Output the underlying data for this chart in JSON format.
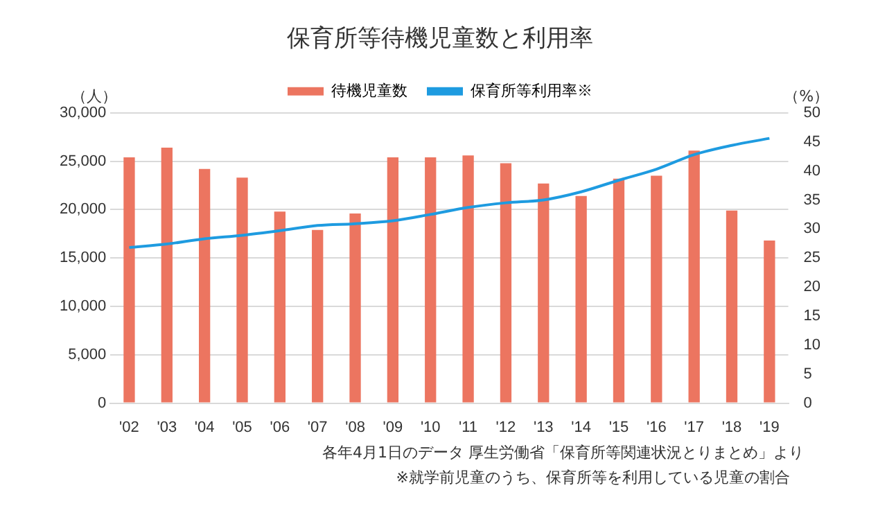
{
  "chart_data": {
    "type": "bar",
    "title": "保育所等待機児童数と利用率",
    "ylabel": "（人）",
    "y2label": "（%）",
    "categories": [
      "'02",
      "'03",
      "'04",
      "'05",
      "'06",
      "'07",
      "'08",
      "'09",
      "'10",
      "'11",
      "'12",
      "'13",
      "'14",
      "'15",
      "'16",
      "'17",
      "'18",
      "'19"
    ],
    "series": [
      {
        "name": "待機児童数",
        "color": "#ec7560",
        "values": [
          25400,
          26400,
          24200,
          23300,
          19800,
          17900,
          19600,
          25400,
          25400,
          25600,
          24800,
          22700,
          21400,
          23200,
          23500,
          26100,
          19900,
          16800
        ]
      },
      {
        "name": "保育所等利用率※",
        "type": "line",
        "axis": "y2",
        "color": "#1e9be0",
        "values": [
          26.8,
          27.4,
          28.3,
          28.9,
          29.7,
          30.6,
          30.9,
          31.4,
          32.5,
          33.7,
          34.5,
          35.0,
          36.4,
          38.4,
          40.3,
          42.8,
          44.4,
          45.6
        ]
      }
    ],
    "ylim": [
      0,
      30000
    ],
    "yticks": [
      0,
      {
        "value": 5000,
        "label": "5,000"
      },
      {
        "value": 10000,
        "label": "10,000"
      },
      {
        "value": 15000,
        "label": "15,000"
      },
      {
        "value": 20000,
        "label": "20,000"
      },
      {
        "value": 25000,
        "label": "25,000"
      },
      {
        "value": 30000,
        "label": "30,000"
      }
    ],
    "y2lim": [
      0,
      50
    ],
    "y2ticks": [
      0,
      5,
      10,
      15,
      20,
      25,
      30,
      35,
      40,
      45,
      50
    ],
    "grid": "y",
    "legend": "top",
    "marker": "none",
    "line_style": "solid",
    "annotations": [
      "各年4月1日のデータ 厚生労働省「保育所等関連状況とりまとめ」より",
      "※就学前児童のうち、保育所等を利用している児童の割合"
    ]
  }
}
